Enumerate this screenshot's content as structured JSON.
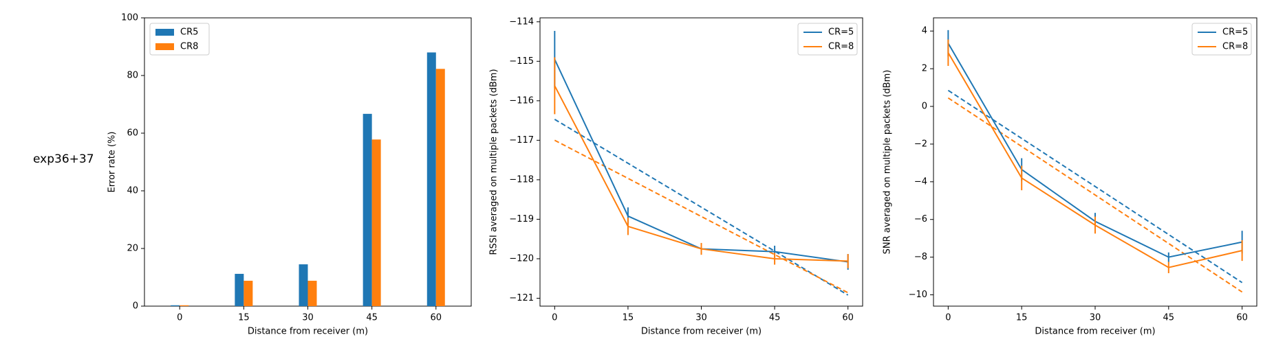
{
  "side_label": "exp36+37",
  "colors": {
    "cr5": "#1f77b4",
    "cr8": "#ff7f0e"
  },
  "chart_data": [
    {
      "type": "bar",
      "title": "",
      "xlabel": "Distance from receiver (m)",
      "ylabel": "Error rate (%)",
      "categories": [
        0,
        15,
        30,
        45,
        60
      ],
      "ylim": [
        0,
        100
      ],
      "yticks": [
        0,
        20,
        40,
        60,
        80,
        100
      ],
      "legend": "top-left",
      "grid": false,
      "series": [
        {
          "name": "CR5",
          "color": "#1f77b4",
          "values": [
            0.3,
            11.2,
            14.5,
            66.7,
            88.0
          ]
        },
        {
          "name": "CR8",
          "color": "#ff7f0e",
          "values": [
            0.3,
            8.8,
            8.8,
            57.8,
            82.3
          ]
        }
      ]
    },
    {
      "type": "line",
      "title": "",
      "xlabel": "Distance from receiver (m)",
      "ylabel": "RSSI averaged on multiple packets (dBm)",
      "x": [
        0,
        15,
        30,
        45,
        60
      ],
      "xlim": [
        -3,
        63
      ],
      "ylim": [
        -121.2,
        -113.9
      ],
      "yticks": [
        -121,
        -120,
        -119,
        -118,
        -117,
        -116,
        -115,
        -114
      ],
      "legend": "top-right",
      "grid": false,
      "series": [
        {
          "name": "CR=5",
          "color": "#1f77b4",
          "values": [
            -114.95,
            -118.92,
            -119.75,
            -119.82,
            -120.08
          ],
          "errors": [
            0.72,
            0.22,
            0.1,
            0.15,
            0.2
          ]
        },
        {
          "name": "CR=8",
          "color": "#ff7f0e",
          "values": [
            -115.62,
            -119.18,
            -119.75,
            -120.0,
            -120.06
          ],
          "errors": [
            0.72,
            0.22,
            0.15,
            0.15,
            0.18
          ]
        }
      ],
      "trendlines": [
        {
          "series": "CR=5",
          "color": "#1f77b4",
          "style": "dashed",
          "values": [
            -116.47,
            -120.92
          ]
        },
        {
          "series": "CR=8",
          "color": "#ff7f0e",
          "style": "dashed",
          "values": [
            -117.0,
            -120.86
          ]
        }
      ]
    },
    {
      "type": "line",
      "title": "",
      "xlabel": "Distance from receiver (m)",
      "ylabel": "SNR averaged on multiple packets (dBm)",
      "x": [
        0,
        15,
        30,
        45,
        60
      ],
      "xlim": [
        -3,
        63
      ],
      "ylim": [
        -10.6,
        4.7
      ],
      "yticks": [
        -10,
        -8,
        -6,
        -4,
        -2,
        0,
        2,
        4
      ],
      "legend": "top-right",
      "grid": false,
      "series": [
        {
          "name": "CR=5",
          "color": "#1f77b4",
          "values": [
            3.35,
            -3.35,
            -6.1,
            -8.0,
            -7.2
          ],
          "errors": [
            0.7,
            0.6,
            0.45,
            0.25,
            0.6
          ]
        },
        {
          "name": "CR=8",
          "color": "#ff7f0e",
          "values": [
            2.85,
            -3.8,
            -6.3,
            -8.55,
            -7.65
          ],
          "errors": [
            0.7,
            0.65,
            0.45,
            0.3,
            0.55
          ]
        }
      ],
      "trendlines": [
        {
          "series": "CR=5",
          "color": "#1f77b4",
          "style": "dashed",
          "values": [
            0.85,
            -9.35
          ]
        },
        {
          "series": "CR=8",
          "color": "#ff7f0e",
          "style": "dashed",
          "values": [
            0.45,
            -9.85
          ]
        }
      ]
    }
  ]
}
